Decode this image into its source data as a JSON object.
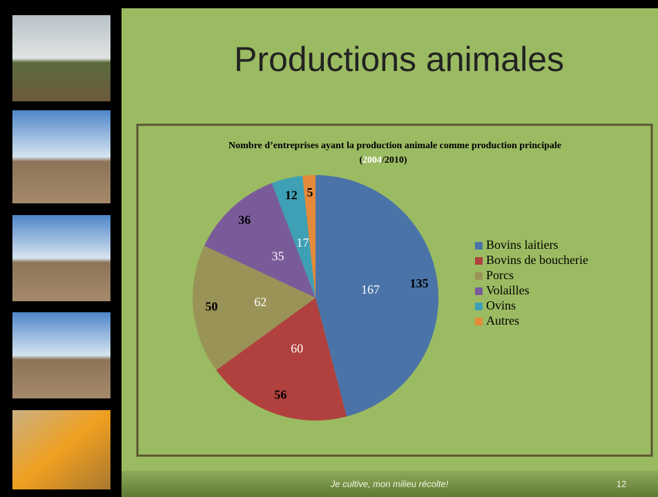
{
  "slide": {
    "title": "Productions animales",
    "footer": "Je cultive, mon milieu récolte!",
    "page_number": "12"
  },
  "chart_data": {
    "type": "pie",
    "title": "Nombre d’entreprises ayant la production animale comme production principale",
    "subtitle": [
      "(",
      "2004",
      "/2010)"
    ],
    "categories": [
      "Bovins laitiers",
      "Bovins de boucherie",
      "Porcs",
      "Volailles",
      "Ovins",
      "Autres"
    ],
    "colors": [
      "#4a73a8",
      "#b0413e",
      "#9a9357",
      "#7a5b9a",
      "#3ea0b4",
      "#e5893a"
    ],
    "series": [
      {
        "name": "2010",
        "color": "#000000",
        "values": [
          135,
          56,
          50,
          36,
          12,
          5
        ]
      },
      {
        "name": "2004",
        "color": "#ffffff",
        "values": [
          167,
          60,
          62,
          35,
          17,
          null
        ]
      }
    ],
    "legend": "right"
  }
}
